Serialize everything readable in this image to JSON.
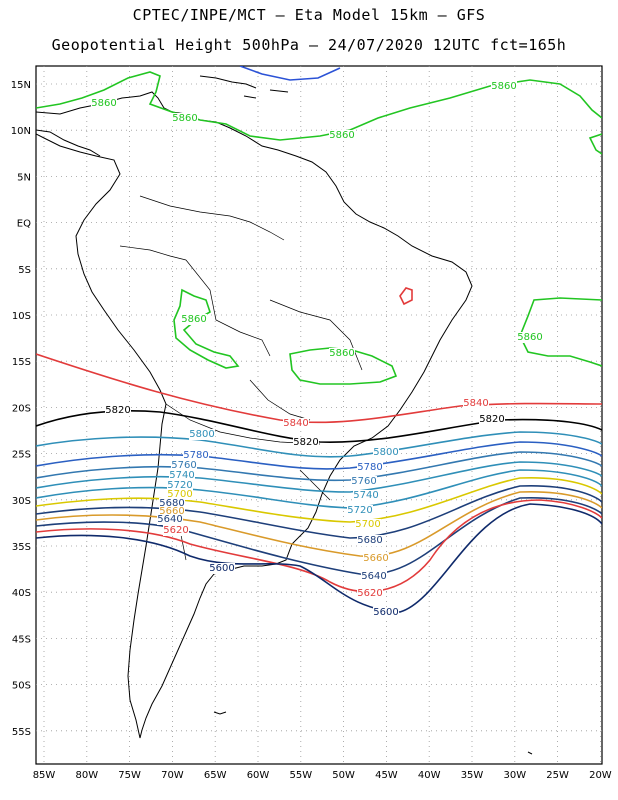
{
  "header": {
    "line1": "CPTEC/INPE/MCT –  Eta Model 15km – GFS",
    "line2": "Geopotential Height 500hPa – 24/07/2020 12UTC fct=165h"
  },
  "lat_ticks": [
    "15N",
    "10N",
    "5N",
    "EQ",
    "5S",
    "10S",
    "15S",
    "20S",
    "25S",
    "30S",
    "35S",
    "40S",
    "45S",
    "50S",
    "55S"
  ],
  "lon_ticks": [
    "85W",
    "80W",
    "75W",
    "70W",
    "65W",
    "60W",
    "55W",
    "50W",
    "45W",
    "40W",
    "35W",
    "30W",
    "25W",
    "20W"
  ],
  "contour_labels": [
    {
      "text": "5860",
      "color": "#22c522"
    },
    {
      "text": "5860",
      "color": "#22c522"
    },
    {
      "text": "5860",
      "color": "#22c522"
    },
    {
      "text": "5860",
      "color": "#22c522"
    },
    {
      "text": "5860",
      "color": "#22c522"
    },
    {
      "text": "5860",
      "color": "#22c522"
    },
    {
      "text": "5860",
      "color": "#22c522"
    },
    {
      "text": "5840",
      "color": "#e23b3b"
    },
    {
      "text": "5840",
      "color": "#e23b3b"
    },
    {
      "text": "5820",
      "color": "#000000"
    },
    {
      "text": "5820",
      "color": "#000000"
    },
    {
      "text": "5820",
      "color": "#000000"
    },
    {
      "text": "5800",
      "color": "#2f8fb8"
    },
    {
      "text": "5800",
      "color": "#2f8fb8"
    },
    {
      "text": "5780",
      "color": "#2a5fc2"
    },
    {
      "text": "5780",
      "color": "#2a5fc2"
    },
    {
      "text": "5760",
      "color": "#3378b0"
    },
    {
      "text": "5760",
      "color": "#3378b0"
    },
    {
      "text": "5740",
      "color": "#2f8fb8"
    },
    {
      "text": "5740",
      "color": "#2f8fb8"
    },
    {
      "text": "5720",
      "color": "#2f8fb8"
    },
    {
      "text": "5720",
      "color": "#2f8fb8"
    },
    {
      "text": "5700",
      "color": "#d9c800"
    },
    {
      "text": "5700",
      "color": "#d9c800"
    },
    {
      "text": "5680",
      "color": "#1e3f7a"
    },
    {
      "text": "5680",
      "color": "#1e3f7a"
    },
    {
      "text": "5660",
      "color": "#d99a2a"
    },
    {
      "text": "5660",
      "color": "#d99a2a"
    },
    {
      "text": "5640",
      "color": "#1e3f7a"
    },
    {
      "text": "5640",
      "color": "#1e3f7a"
    },
    {
      "text": "5620",
      "color": "#e23b3b"
    },
    {
      "text": "5620",
      "color": "#e23b3b"
    },
    {
      "text": "5600",
      "color": "#0f2a6b"
    },
    {
      "text": "5600",
      "color": "#0f2a6b"
    }
  ]
}
